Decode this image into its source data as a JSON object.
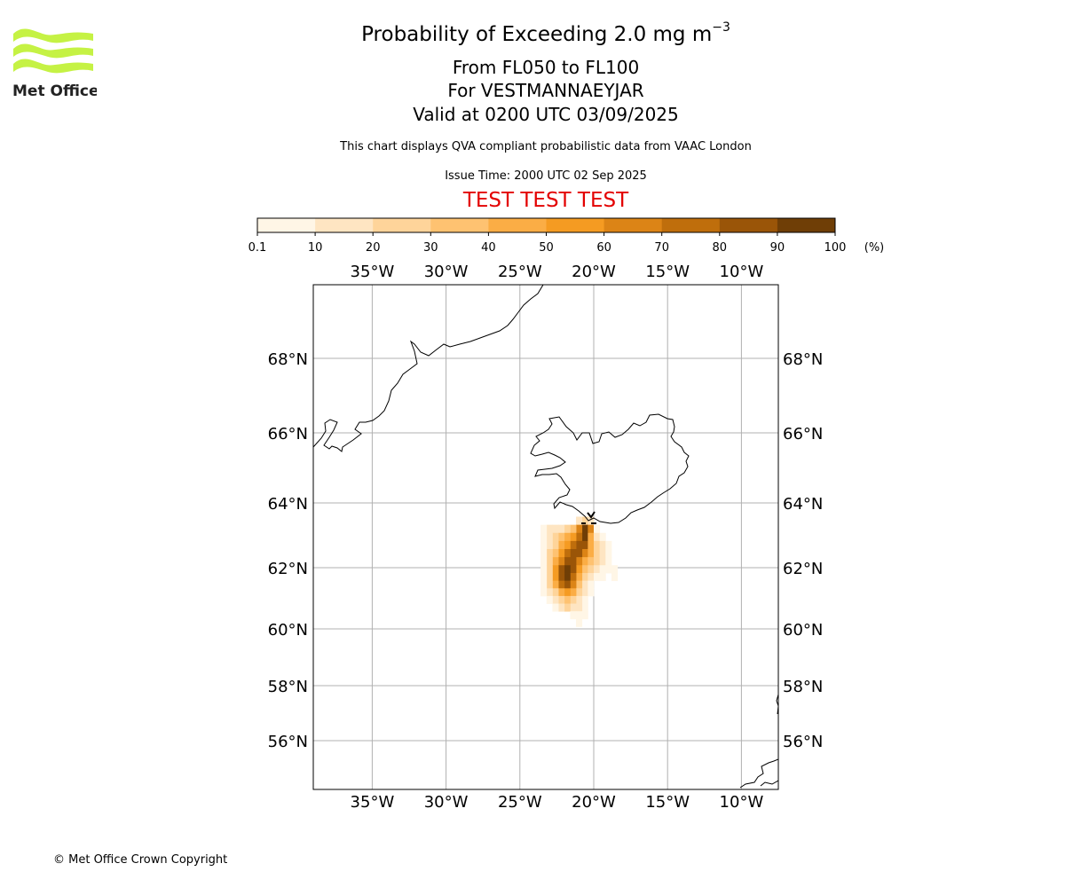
{
  "header": {
    "title_prefix": "Probability of Exceeding 2.0 mg m",
    "title_exponent": "−3",
    "flight_levels": "From FL050 to FL100",
    "location": "For VESTMANNAEYJAR",
    "valid": "Valid at 0200 UTC 03/09/2025",
    "description": "This chart displays QVA compliant probabilistic data from VAAC London",
    "issue_time": "Issue Time: 2000 UTC 02 Sep 2025",
    "test_banner": "TEST TEST TEST"
  },
  "logo": {
    "text": "Met Office",
    "color": "#c5f244"
  },
  "colorbar": {
    "unit": "(%)",
    "ticks": [
      "0.1",
      "10",
      "20",
      "30",
      "40",
      "50",
      "60",
      "70",
      "80",
      "90",
      "100"
    ],
    "colors": [
      "#fff6e6",
      "#fee5c2",
      "#fed49a",
      "#fec271",
      "#fbad45",
      "#f59b22",
      "#dc8416",
      "#bf6e0c",
      "#9a5508",
      "#6f3e06"
    ]
  },
  "map": {
    "lon_labels": [
      "35°W",
      "30°W",
      "25°W",
      "20°W",
      "15°W",
      "10°W"
    ],
    "lon_values": [
      -35,
      -30,
      -25,
      -20,
      -15,
      -10
    ],
    "lat_labels": [
      "68°N",
      "66°N",
      "64°N",
      "62°N",
      "60°N",
      "58°N",
      "56°N"
    ],
    "lat_values": [
      68,
      66,
      64,
      62,
      60,
      58,
      56
    ],
    "source_marker": "Vestmannaeyjar",
    "plume": [
      {
        "lon": -20.6,
        "lat": 63.45,
        "p": 2
      },
      {
        "lon": -20.2,
        "lat": 63.45,
        "p": 1
      },
      {
        "lon": -21.0,
        "lat": 63.45,
        "p": 1
      },
      {
        "lon": -20.6,
        "lat": 63.2,
        "p": 9
      },
      {
        "lon": -20.2,
        "lat": 63.2,
        "p": 6
      },
      {
        "lon": -21.0,
        "lat": 63.2,
        "p": 6
      },
      {
        "lon": -21.4,
        "lat": 63.2,
        "p": 3
      },
      {
        "lon": -21.8,
        "lat": 63.2,
        "p": 2
      },
      {
        "lon": -22.2,
        "lat": 63.2,
        "p": 1
      },
      {
        "lon": -22.6,
        "lat": 63.2,
        "p": 1
      },
      {
        "lon": -23.0,
        "lat": 63.2,
        "p": 1
      },
      {
        "lon": -23.4,
        "lat": 63.2,
        "p": 0
      },
      {
        "lon": -19.8,
        "lat": 63.2,
        "p": 0
      },
      {
        "lon": -20.6,
        "lat": 62.95,
        "p": 9
      },
      {
        "lon": -21.0,
        "lat": 62.95,
        "p": 7
      },
      {
        "lon": -21.4,
        "lat": 62.95,
        "p": 5
      },
      {
        "lon": -21.8,
        "lat": 62.95,
        "p": 4
      },
      {
        "lon": -22.2,
        "lat": 62.95,
        "p": 3
      },
      {
        "lon": -22.6,
        "lat": 62.95,
        "p": 2
      },
      {
        "lon": -23.0,
        "lat": 62.95,
        "p": 1
      },
      {
        "lon": -23.4,
        "lat": 62.95,
        "p": 0
      },
      {
        "lon": -20.2,
        "lat": 62.95,
        "p": 4
      },
      {
        "lon": -19.8,
        "lat": 62.95,
        "p": 1
      },
      {
        "lon": -19.4,
        "lat": 62.95,
        "p": 0
      },
      {
        "lon": -20.6,
        "lat": 62.7,
        "p": 8
      },
      {
        "lon": -21.0,
        "lat": 62.7,
        "p": 8
      },
      {
        "lon": -21.4,
        "lat": 62.7,
        "p": 7
      },
      {
        "lon": -21.8,
        "lat": 62.7,
        "p": 5
      },
      {
        "lon": -22.2,
        "lat": 62.7,
        "p": 4
      },
      {
        "lon": -22.6,
        "lat": 62.7,
        "p": 2
      },
      {
        "lon": -23.0,
        "lat": 62.7,
        "p": 1
      },
      {
        "lon": -23.4,
        "lat": 62.7,
        "p": 0
      },
      {
        "lon": -20.2,
        "lat": 62.7,
        "p": 4
      },
      {
        "lon": -19.8,
        "lat": 62.7,
        "p": 2
      },
      {
        "lon": -19.4,
        "lat": 62.7,
        "p": 1
      },
      {
        "lon": -19.0,
        "lat": 62.7,
        "p": 0
      },
      {
        "lon": -20.6,
        "lat": 62.45,
        "p": 6
      },
      {
        "lon": -21.0,
        "lat": 62.45,
        "p": 8
      },
      {
        "lon": -21.4,
        "lat": 62.45,
        "p": 8
      },
      {
        "lon": -21.8,
        "lat": 62.45,
        "p": 7
      },
      {
        "lon": -22.2,
        "lat": 62.45,
        "p": 5
      },
      {
        "lon": -22.6,
        "lat": 62.45,
        "p": 3
      },
      {
        "lon": -23.0,
        "lat": 62.45,
        "p": 2
      },
      {
        "lon": -23.4,
        "lat": 62.45,
        "p": 0
      },
      {
        "lon": -20.2,
        "lat": 62.45,
        "p": 4
      },
      {
        "lon": -19.8,
        "lat": 62.45,
        "p": 2
      },
      {
        "lon": -19.4,
        "lat": 62.45,
        "p": 1
      },
      {
        "lon": -19.0,
        "lat": 62.45,
        "p": 0
      },
      {
        "lon": -20.6,
        "lat": 62.2,
        "p": 4
      },
      {
        "lon": -21.0,
        "lat": 62.2,
        "p": 6
      },
      {
        "lon": -21.4,
        "lat": 62.2,
        "p": 8
      },
      {
        "lon": -21.8,
        "lat": 62.2,
        "p": 8
      },
      {
        "lon": -22.2,
        "lat": 62.2,
        "p": 6
      },
      {
        "lon": -22.6,
        "lat": 62.2,
        "p": 4
      },
      {
        "lon": -23.0,
        "lat": 62.2,
        "p": 2
      },
      {
        "lon": -23.4,
        "lat": 62.2,
        "p": 0
      },
      {
        "lon": -20.2,
        "lat": 62.2,
        "p": 3
      },
      {
        "lon": -19.8,
        "lat": 62.2,
        "p": 2
      },
      {
        "lon": -19.4,
        "lat": 62.2,
        "p": 1
      },
      {
        "lon": -19.0,
        "lat": 62.2,
        "p": 0
      },
      {
        "lon": -20.6,
        "lat": 61.95,
        "p": 3
      },
      {
        "lon": -21.0,
        "lat": 61.95,
        "p": 5
      },
      {
        "lon": -21.4,
        "lat": 61.95,
        "p": 8
      },
      {
        "lon": -21.8,
        "lat": 61.95,
        "p": 9
      },
      {
        "lon": -22.2,
        "lat": 61.95,
        "p": 8
      },
      {
        "lon": -22.6,
        "lat": 61.95,
        "p": 5
      },
      {
        "lon": -23.0,
        "lat": 61.95,
        "p": 2
      },
      {
        "lon": -23.4,
        "lat": 61.95,
        "p": 0
      },
      {
        "lon": -20.2,
        "lat": 61.95,
        "p": 2
      },
      {
        "lon": -19.8,
        "lat": 61.95,
        "p": 1
      },
      {
        "lon": -19.4,
        "lat": 61.95,
        "p": 0
      },
      {
        "lon": -19.0,
        "lat": 61.95,
        "p": 0
      },
      {
        "lon": -18.6,
        "lat": 61.95,
        "p": 0
      },
      {
        "lon": -20.6,
        "lat": 61.7,
        "p": 2
      },
      {
        "lon": -21.0,
        "lat": 61.7,
        "p": 4
      },
      {
        "lon": -21.4,
        "lat": 61.7,
        "p": 7
      },
      {
        "lon": -21.8,
        "lat": 61.7,
        "p": 9
      },
      {
        "lon": -22.2,
        "lat": 61.7,
        "p": 8
      },
      {
        "lon": -22.6,
        "lat": 61.7,
        "p": 5
      },
      {
        "lon": -23.0,
        "lat": 61.7,
        "p": 2
      },
      {
        "lon": -23.4,
        "lat": 61.7,
        "p": 0
      },
      {
        "lon": -20.2,
        "lat": 61.7,
        "p": 1
      },
      {
        "lon": -19.8,
        "lat": 61.7,
        "p": 0
      },
      {
        "lon": -19.4,
        "lat": 61.7,
        "p": 0
      },
      {
        "lon": -18.6,
        "lat": 61.7,
        "p": 0
      },
      {
        "lon": -20.6,
        "lat": 61.45,
        "p": 1
      },
      {
        "lon": -21.0,
        "lat": 61.45,
        "p": 3
      },
      {
        "lon": -21.4,
        "lat": 61.45,
        "p": 6
      },
      {
        "lon": -21.8,
        "lat": 61.45,
        "p": 8
      },
      {
        "lon": -22.2,
        "lat": 61.45,
        "p": 7
      },
      {
        "lon": -22.6,
        "lat": 61.45,
        "p": 4
      },
      {
        "lon": -23.0,
        "lat": 61.45,
        "p": 2
      },
      {
        "lon": -23.4,
        "lat": 61.45,
        "p": 0
      },
      {
        "lon": -20.2,
        "lat": 61.45,
        "p": 0
      },
      {
        "lon": -20.6,
        "lat": 61.2,
        "p": 1
      },
      {
        "lon": -21.0,
        "lat": 61.2,
        "p": 2
      },
      {
        "lon": -21.4,
        "lat": 61.2,
        "p": 4
      },
      {
        "lon": -21.8,
        "lat": 61.2,
        "p": 5
      },
      {
        "lon": -22.2,
        "lat": 61.2,
        "p": 4
      },
      {
        "lon": -22.6,
        "lat": 61.2,
        "p": 2
      },
      {
        "lon": -23.0,
        "lat": 61.2,
        "p": 1
      },
      {
        "lon": -23.4,
        "lat": 61.2,
        "p": 0
      },
      {
        "lon": -20.2,
        "lat": 61.2,
        "p": 0
      },
      {
        "lon": -20.6,
        "lat": 60.95,
        "p": 0
      },
      {
        "lon": -21.0,
        "lat": 60.95,
        "p": 1
      },
      {
        "lon": -21.4,
        "lat": 60.95,
        "p": 2
      },
      {
        "lon": -21.8,
        "lat": 60.95,
        "p": 3
      },
      {
        "lon": -22.2,
        "lat": 60.95,
        "p": 2
      },
      {
        "lon": -22.6,
        "lat": 60.95,
        "p": 1
      },
      {
        "lon": -23.0,
        "lat": 60.95,
        "p": 0
      },
      {
        "lon": -20.6,
        "lat": 60.7,
        "p": 0
      },
      {
        "lon": -21.0,
        "lat": 60.7,
        "p": 1
      },
      {
        "lon": -21.4,
        "lat": 60.7,
        "p": 1
      },
      {
        "lon": -21.8,
        "lat": 60.7,
        "p": 2
      },
      {
        "lon": -22.2,
        "lat": 60.7,
        "p": 1
      },
      {
        "lon": -22.6,
        "lat": 60.7,
        "p": 0
      },
      {
        "lon": -20.6,
        "lat": 60.45,
        "p": 0
      },
      {
        "lon": -21.0,
        "lat": 60.45,
        "p": 0
      },
      {
        "lon": -21.4,
        "lat": 60.45,
        "p": 0
      },
      {
        "lon": -21.0,
        "lat": 60.2,
        "p": 0
      }
    ]
  },
  "footer": {
    "copyright": "© Met Office Crown Copyright"
  }
}
